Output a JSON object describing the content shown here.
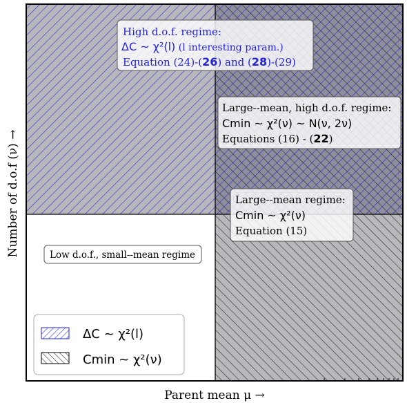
{
  "axes": {
    "xlabel": "Parent mean μ →",
    "ylabel": "Number of d.o.f (ν) →"
  },
  "colors": {
    "blue": "#2222dd",
    "gray_fill": "#b8b8bc",
    "dark_fill": "#8e8e9c",
    "frame": "#000000"
  },
  "regions": {
    "high_dof": {
      "line1": "High d.o.f. regime:",
      "line2_math": "ΔC ~ χ²(l)",
      "line2_text": " (l interesting param.)",
      "line3_pre": "Equation (24)-(",
      "line3_b1": "26",
      "line3_mid": ") and (",
      "line3_b2": "28",
      "line3_post": ")-(29)"
    },
    "large_mean_high_dof": {
      "line1": "Large--mean, high d.o.f. regime:",
      "line2": "Cmin ~ χ²(ν) ~ N(ν, 2ν)",
      "line3_pre": "Equations (16) - (",
      "line3_b": "22",
      "line3_post": ")"
    },
    "large_mean": {
      "line1": "Large--mean regime:",
      "line2": "Cmin ~ χ²(ν)",
      "line3": "Equation (15)"
    },
    "low_dof": {
      "line1": "Low d.o.f., small--mean regime"
    }
  },
  "legend": {
    "items": [
      {
        "label": "ΔC ~ χ²(l)",
        "hatch": "forward-blue"
      },
      {
        "label": "Cmin ~ χ²(ν)",
        "hatch": "back-black"
      }
    ]
  }
}
